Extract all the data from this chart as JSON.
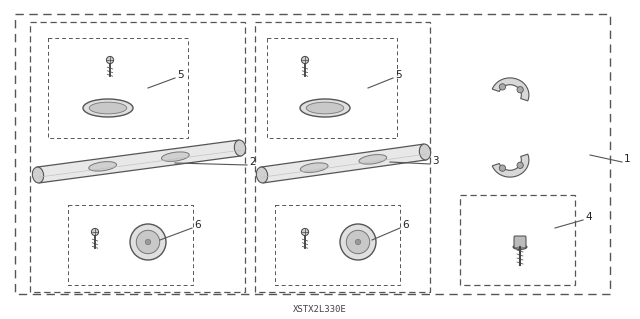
{
  "background_color": "#ffffff",
  "part_label": "XSTX2L330E",
  "fig_width": 6.4,
  "fig_height": 3.19,
  "line_color": "#555555",
  "part_color": "#e8e8e8",
  "part_edge": "#555555"
}
